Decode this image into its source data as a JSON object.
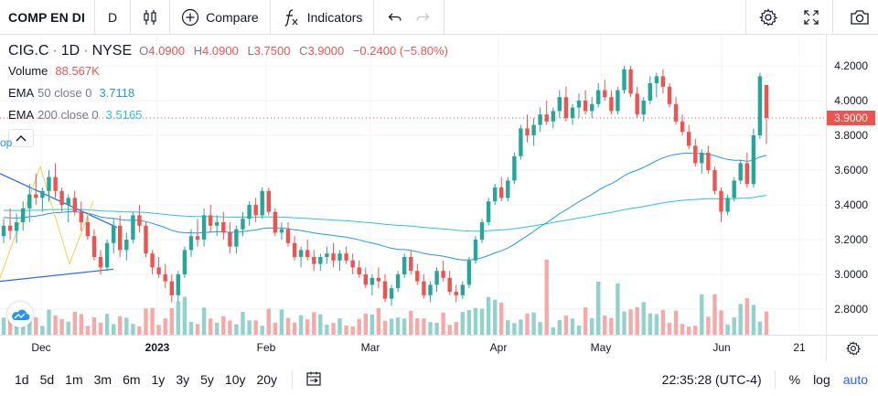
{
  "toolbar": {
    "symbol": "COMP EN DI",
    "interval": "D",
    "compare_label": "Compare",
    "indicators_label": "Indicators"
  },
  "legend": {
    "symbol": "CIG.C",
    "interval": "1D",
    "exchange": "NYSE",
    "ohlc": [
      {
        "k": "O",
        "v": "4.0900"
      },
      {
        "k": "H",
        "v": "4.0900"
      },
      {
        "k": "L",
        "v": "3.7500"
      },
      {
        "k": "C",
        "v": "3.9000"
      }
    ],
    "change": "−0.2400 (−5.80%)",
    "volume_label": "Volume",
    "volume_value": "88.567K",
    "ema50_name": "EMA",
    "ema50_param": "50 close 0",
    "ema50_value": "3.7118",
    "ema200_name": "EMA",
    "ema200_param": "200 close 0",
    "ema200_value": "3.5165"
  },
  "cut_label": "op",
  "price_axis": [
    "4.2000",
    "4.0000",
    "3.8000",
    "3.6000",
    "3.4000",
    "3.2000",
    "3.0000",
    "2.8000"
  ],
  "last_price": "3.9000",
  "time_axis": [
    {
      "label": "Dec",
      "bold": false
    },
    {
      "label": "2023",
      "bold": true
    },
    {
      "label": "Feb",
      "bold": false
    },
    {
      "label": "Mar",
      "bold": false
    },
    {
      "label": "Apr",
      "bold": false
    },
    {
      "label": "May",
      "bold": false
    },
    {
      "label": "Jun",
      "bold": false
    },
    {
      "label": "21",
      "bold": false
    }
  ],
  "ranges": [
    "1d",
    "5d",
    "1m",
    "3m",
    "6m",
    "1y",
    "3y",
    "5y",
    "10y",
    "20y"
  ],
  "clock": "22:35:28 (UTC-4)",
  "options": {
    "percent": "%",
    "log": "log",
    "auto": "auto"
  },
  "colors": {
    "up": "#26a69a",
    "down": "#ef5350",
    "ema50": "#2196f3",
    "ema200": "#26c6da",
    "accent": "#2962ff"
  },
  "chart_data": {
    "type": "candlestick",
    "ylim": [
      2.7,
      4.25
    ],
    "candles": [
      [
        3.22,
        3.32,
        3.18,
        3.28
      ],
      [
        3.28,
        3.38,
        3.2,
        3.25
      ],
      [
        3.25,
        3.35,
        3.18,
        3.3
      ],
      [
        3.3,
        3.42,
        3.25,
        3.38
      ],
      [
        3.38,
        3.52,
        3.3,
        3.46
      ],
      [
        3.46,
        3.58,
        3.4,
        3.44
      ],
      [
        3.44,
        3.5,
        3.36,
        3.48
      ],
      [
        3.48,
        3.6,
        3.42,
        3.56
      ],
      [
        3.56,
        3.64,
        3.44,
        3.48
      ],
      [
        3.48,
        3.5,
        3.36,
        3.4
      ],
      [
        3.4,
        3.46,
        3.3,
        3.44
      ],
      [
        3.44,
        3.48,
        3.34,
        3.36
      ],
      [
        3.36,
        3.42,
        3.25,
        3.3
      ],
      [
        3.3,
        3.34,
        3.2,
        3.22
      ],
      [
        3.22,
        3.26,
        3.08,
        3.1
      ],
      [
        3.1,
        3.14,
        3.0,
        3.04
      ],
      [
        3.04,
        3.2,
        3.02,
        3.18
      ],
      [
        3.18,
        3.32,
        3.12,
        3.28
      ],
      [
        3.28,
        3.34,
        3.1,
        3.14
      ],
      [
        3.14,
        3.24,
        3.08,
        3.2
      ],
      [
        3.2,
        3.36,
        3.18,
        3.34
      ],
      [
        3.34,
        3.4,
        3.24,
        3.28
      ],
      [
        3.28,
        3.3,
        3.1,
        3.12
      ],
      [
        3.12,
        3.14,
        3.0,
        3.04
      ],
      [
        3.04,
        3.1,
        2.98,
        3.0
      ],
      [
        3.0,
        3.06,
        2.92,
        2.96
      ],
      [
        2.96,
        3.0,
        2.84,
        2.88
      ],
      [
        2.88,
        3.02,
        2.84,
        3.0
      ],
      [
        3.0,
        3.16,
        2.98,
        3.14
      ],
      [
        3.14,
        3.26,
        3.1,
        3.22
      ],
      [
        3.22,
        3.32,
        3.16,
        3.2
      ],
      [
        3.2,
        3.38,
        3.16,
        3.34
      ],
      [
        3.34,
        3.4,
        3.24,
        3.28
      ],
      [
        3.28,
        3.34,
        3.22,
        3.3
      ],
      [
        3.3,
        3.36,
        3.2,
        3.24
      ],
      [
        3.24,
        3.3,
        3.12,
        3.16
      ],
      [
        3.16,
        3.28,
        3.12,
        3.26
      ],
      [
        3.26,
        3.36,
        3.22,
        3.32
      ],
      [
        3.32,
        3.42,
        3.28,
        3.4
      ],
      [
        3.4,
        3.44,
        3.3,
        3.34
      ],
      [
        3.34,
        3.5,
        3.32,
        3.48
      ],
      [
        3.48,
        3.5,
        3.34,
        3.36
      ],
      [
        3.36,
        3.38,
        3.22,
        3.24
      ],
      [
        3.24,
        3.3,
        3.2,
        3.26
      ],
      [
        3.26,
        3.3,
        3.16,
        3.18
      ],
      [
        3.18,
        3.22,
        3.08,
        3.1
      ],
      [
        3.1,
        3.16,
        3.04,
        3.14
      ],
      [
        3.14,
        3.2,
        3.08,
        3.1
      ],
      [
        3.1,
        3.14,
        3.02,
        3.06
      ],
      [
        3.06,
        3.12,
        3.02,
        3.1
      ],
      [
        3.1,
        3.16,
        3.06,
        3.12
      ],
      [
        3.12,
        3.18,
        3.04,
        3.08
      ],
      [
        3.08,
        3.14,
        3.02,
        3.12
      ],
      [
        3.12,
        3.16,
        3.06,
        3.08
      ],
      [
        3.08,
        3.12,
        3.0,
        3.04
      ],
      [
        3.04,
        3.08,
        2.98,
        3.0
      ],
      [
        3.0,
        3.04,
        2.92,
        2.94
      ],
      [
        2.94,
        3.0,
        2.88,
        2.98
      ],
      [
        2.98,
        3.04,
        2.92,
        2.96
      ],
      [
        2.96,
        3.0,
        2.84,
        2.86
      ],
      [
        2.86,
        2.94,
        2.82,
        2.92
      ],
      [
        2.92,
        3.02,
        2.9,
        3.0
      ],
      [
        3.0,
        3.12,
        2.98,
        3.1
      ],
      [
        3.1,
        3.14,
        3.0,
        3.02
      ],
      [
        3.02,
        3.06,
        2.94,
        2.96
      ],
      [
        2.96,
        3.0,
        2.86,
        2.88
      ],
      [
        2.88,
        2.96,
        2.84,
        2.94
      ],
      [
        2.94,
        3.04,
        2.9,
        3.02
      ],
      [
        3.02,
        3.08,
        2.96,
        2.98
      ],
      [
        2.98,
        3.02,
        2.88,
        2.9
      ],
      [
        2.9,
        2.94,
        2.84,
        2.88
      ],
      [
        2.88,
        2.96,
        2.86,
        2.94
      ],
      [
        2.94,
        3.1,
        2.92,
        3.08
      ],
      [
        3.08,
        3.22,
        3.06,
        3.2
      ],
      [
        3.2,
        3.32,
        3.18,
        3.3
      ],
      [
        3.3,
        3.44,
        3.28,
        3.42
      ],
      [
        3.42,
        3.52,
        3.4,
        3.5
      ],
      [
        3.5,
        3.56,
        3.42,
        3.44
      ],
      [
        3.44,
        3.56,
        3.42,
        3.54
      ],
      [
        3.54,
        3.7,
        3.52,
        3.68
      ],
      [
        3.68,
        3.86,
        3.66,
        3.84
      ],
      [
        3.84,
        3.92,
        3.76,
        3.8
      ],
      [
        3.8,
        3.9,
        3.74,
        3.86
      ],
      [
        3.86,
        3.96,
        3.82,
        3.92
      ],
      [
        3.92,
        4.0,
        3.86,
        3.88
      ],
      [
        3.88,
        3.96,
        3.84,
        3.94
      ],
      [
        3.94,
        4.06,
        3.9,
        4.02
      ],
      [
        4.02,
        4.08,
        3.88,
        3.9
      ],
      [
        3.9,
        3.98,
        3.86,
        3.96
      ],
      [
        3.96,
        4.04,
        3.9,
        4.0
      ],
      [
        4.0,
        4.06,
        3.92,
        3.94
      ],
      [
        3.94,
        4.02,
        3.9,
        3.98
      ],
      [
        3.98,
        4.1,
        3.96,
        4.06
      ],
      [
        4.06,
        4.12,
        4.0,
        4.02
      ],
      [
        4.02,
        4.06,
        3.92,
        3.94
      ],
      [
        3.94,
        4.08,
        3.92,
        4.06
      ],
      [
        4.06,
        4.2,
        4.04,
        4.18
      ],
      [
        4.18,
        4.2,
        4.02,
        4.04
      ],
      [
        4.04,
        4.08,
        3.9,
        3.92
      ],
      [
        3.92,
        4.02,
        3.88,
        4.0
      ],
      [
        4.0,
        4.14,
        3.98,
        4.1
      ],
      [
        4.1,
        4.16,
        4.02,
        4.14
      ],
      [
        4.14,
        4.18,
        4.04,
        4.08
      ],
      [
        4.08,
        4.1,
        3.96,
        3.98
      ],
      [
        3.98,
        4.02,
        3.86,
        3.88
      ],
      [
        3.88,
        3.92,
        3.8,
        3.82
      ],
      [
        3.82,
        3.86,
        3.72,
        3.74
      ],
      [
        3.74,
        3.78,
        3.62,
        3.64
      ],
      [
        3.64,
        3.72,
        3.58,
        3.7
      ],
      [
        3.7,
        3.74,
        3.58,
        3.6
      ],
      [
        3.6,
        3.62,
        3.46,
        3.48
      ],
      [
        3.48,
        3.5,
        3.3,
        3.36
      ],
      [
        3.36,
        3.46,
        3.34,
        3.44
      ],
      [
        3.44,
        3.56,
        3.42,
        3.54
      ],
      [
        3.54,
        3.66,
        3.52,
        3.64
      ],
      [
        3.64,
        3.7,
        3.5,
        3.52
      ],
      [
        3.52,
        3.84,
        3.5,
        3.8
      ],
      [
        3.8,
        4.16,
        3.78,
        4.14
      ],
      [
        4.09,
        4.09,
        3.75,
        3.9
      ]
    ],
    "volume_max": "88.567K",
    "ema50_last": 3.7118,
    "ema200_last": 3.5165
  }
}
